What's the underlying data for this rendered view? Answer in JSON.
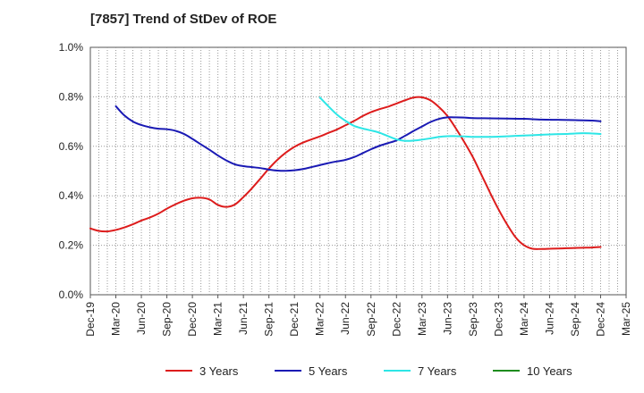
{
  "chart_data": {
    "type": "line",
    "title": "[7857]  Trend of StDev of ROE",
    "xlabel": "",
    "ylabel": "",
    "x_ticks": [
      "Dec-19",
      "Mar-20",
      "Jun-20",
      "Sep-20",
      "Dec-20",
      "Mar-21",
      "Jun-21",
      "Sep-21",
      "Dec-21",
      "Mar-22",
      "Jun-22",
      "Sep-22",
      "Dec-22",
      "Mar-23",
      "Jun-23",
      "Sep-23",
      "Dec-23",
      "Mar-24",
      "Jun-24",
      "Sep-24",
      "Dec-24",
      "Mar-25"
    ],
    "y_ticks": [
      "0.0%",
      "0.2%",
      "0.4%",
      "0.6%",
      "0.8%",
      "1.0%"
    ],
    "ylim": [
      0,
      1.0
    ],
    "y_unit": "%",
    "grid": true,
    "legend_position": "bottom",
    "series": [
      {
        "name": "3 Years",
        "color": "#dd1c1c",
        "points": [
          [
            0,
            0.268
          ],
          [
            0.33,
            0.258
          ],
          [
            0.67,
            0.256
          ],
          [
            1,
            0.262
          ],
          [
            1.33,
            0.272
          ],
          [
            1.67,
            0.285
          ],
          [
            2,
            0.3
          ],
          [
            2.33,
            0.312
          ],
          [
            2.67,
            0.328
          ],
          [
            3,
            0.348
          ],
          [
            3.33,
            0.365
          ],
          [
            3.67,
            0.38
          ],
          [
            4,
            0.39
          ],
          [
            4.33,
            0.392
          ],
          [
            4.67,
            0.385
          ],
          [
            5,
            0.363
          ],
          [
            5.33,
            0.355
          ],
          [
            5.67,
            0.365
          ],
          [
            6,
            0.395
          ],
          [
            6.33,
            0.43
          ],
          [
            6.67,
            0.47
          ],
          [
            7,
            0.51
          ],
          [
            7.33,
            0.545
          ],
          [
            7.67,
            0.575
          ],
          [
            8,
            0.598
          ],
          [
            8.33,
            0.615
          ],
          [
            8.67,
            0.628
          ],
          [
            9,
            0.64
          ],
          [
            9.33,
            0.654
          ],
          [
            9.67,
            0.668
          ],
          [
            10,
            0.685
          ],
          [
            10.33,
            0.702
          ],
          [
            10.67,
            0.722
          ],
          [
            11,
            0.738
          ],
          [
            11.33,
            0.75
          ],
          [
            11.67,
            0.76
          ],
          [
            12,
            0.773
          ],
          [
            12.33,
            0.786
          ],
          [
            12.67,
            0.797
          ],
          [
            13,
            0.798
          ],
          [
            13.33,
            0.786
          ],
          [
            13.67,
            0.758
          ],
          [
            14,
            0.722
          ],
          [
            14.33,
            0.672
          ],
          [
            14.67,
            0.615
          ],
          [
            15,
            0.555
          ],
          [
            15.33,
            0.485
          ],
          [
            15.67,
            0.412
          ],
          [
            16,
            0.345
          ],
          [
            16.33,
            0.285
          ],
          [
            16.67,
            0.232
          ],
          [
            17,
            0.2
          ],
          [
            17.33,
            0.186
          ],
          [
            17.67,
            0.185
          ],
          [
            18,
            0.186
          ],
          [
            18.33,
            0.187
          ],
          [
            18.67,
            0.188
          ],
          [
            19,
            0.189
          ],
          [
            19.33,
            0.19
          ],
          [
            19.67,
            0.191
          ],
          [
            20,
            0.193
          ]
        ]
      },
      {
        "name": "5 Years",
        "color": "#1a1ab4",
        "points": [
          [
            1,
            0.762
          ],
          [
            1.33,
            0.725
          ],
          [
            1.67,
            0.7
          ],
          [
            2,
            0.686
          ],
          [
            2.33,
            0.677
          ],
          [
            2.67,
            0.671
          ],
          [
            3,
            0.669
          ],
          [
            3.33,
            0.663
          ],
          [
            3.67,
            0.65
          ],
          [
            4,
            0.63
          ],
          [
            4.33,
            0.608
          ],
          [
            4.67,
            0.586
          ],
          [
            5,
            0.563
          ],
          [
            5.33,
            0.543
          ],
          [
            5.67,
            0.527
          ],
          [
            6,
            0.52
          ],
          [
            6.33,
            0.516
          ],
          [
            6.67,
            0.512
          ],
          [
            7,
            0.506
          ],
          [
            7.33,
            0.502
          ],
          [
            7.67,
            0.501
          ],
          [
            8,
            0.503
          ],
          [
            8.33,
            0.508
          ],
          [
            8.67,
            0.516
          ],
          [
            9,
            0.524
          ],
          [
            9.33,
            0.532
          ],
          [
            9.67,
            0.539
          ],
          [
            10,
            0.545
          ],
          [
            10.33,
            0.556
          ],
          [
            10.67,
            0.572
          ],
          [
            11,
            0.588
          ],
          [
            11.33,
            0.602
          ],
          [
            11.67,
            0.613
          ],
          [
            12,
            0.624
          ],
          [
            12.33,
            0.642
          ],
          [
            12.67,
            0.662
          ],
          [
            13,
            0.68
          ],
          [
            13.33,
            0.698
          ],
          [
            13.67,
            0.711
          ],
          [
            14,
            0.717
          ],
          [
            14.33,
            0.717
          ],
          [
            14.67,
            0.716
          ],
          [
            15,
            0.714
          ],
          [
            15.67,
            0.713
          ],
          [
            16.33,
            0.712
          ],
          [
            17,
            0.711
          ],
          [
            17.67,
            0.708
          ],
          [
            18.33,
            0.707
          ],
          [
            19,
            0.706
          ],
          [
            19.67,
            0.704
          ],
          [
            20,
            0.701
          ]
        ]
      },
      {
        "name": "7 Years",
        "color": "#2de6e6",
        "points": [
          [
            9,
            0.797
          ],
          [
            9.33,
            0.762
          ],
          [
            9.67,
            0.728
          ],
          [
            10,
            0.703
          ],
          [
            10.33,
            0.683
          ],
          [
            10.67,
            0.672
          ],
          [
            11,
            0.664
          ],
          [
            11.33,
            0.655
          ],
          [
            11.67,
            0.641
          ],
          [
            12,
            0.628
          ],
          [
            12.33,
            0.622
          ],
          [
            12.67,
            0.623
          ],
          [
            13,
            0.627
          ],
          [
            13.33,
            0.632
          ],
          [
            13.67,
            0.638
          ],
          [
            14,
            0.641
          ],
          [
            14.33,
            0.641
          ],
          [
            14.67,
            0.64
          ],
          [
            15,
            0.638
          ],
          [
            15.33,
            0.638
          ],
          [
            15.67,
            0.638
          ],
          [
            16,
            0.639
          ],
          [
            16.67,
            0.642
          ],
          [
            17.33,
            0.645
          ],
          [
            18,
            0.648
          ],
          [
            18.67,
            0.65
          ],
          [
            19.33,
            0.653
          ],
          [
            20,
            0.65
          ]
        ]
      },
      {
        "name": "10 Years",
        "color": "#1e8c1e",
        "points": []
      }
    ]
  }
}
